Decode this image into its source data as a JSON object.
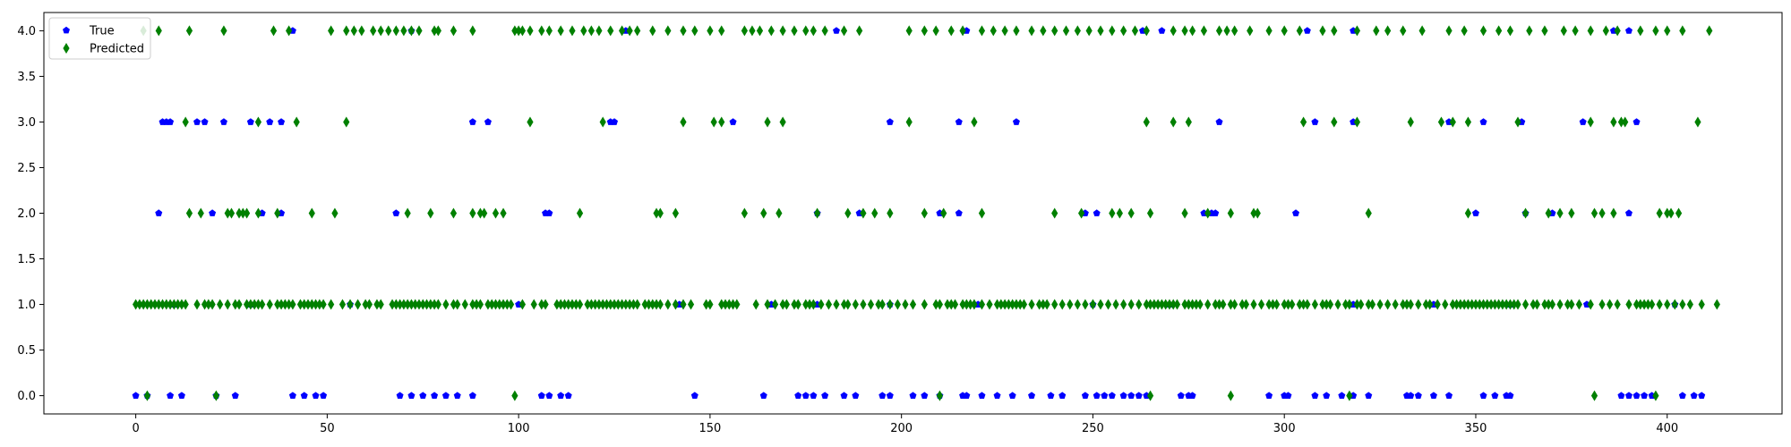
{
  "chart_data": {
    "type": "scatter",
    "xlim": [
      -24,
      430
    ],
    "ylim": [
      -0.2,
      4.2
    ],
    "x_ticks": [
      0,
      50,
      100,
      150,
      200,
      250,
      300,
      350,
      400
    ],
    "y_ticks": [
      0.0,
      0.5,
      1.0,
      1.5,
      2.0,
      2.5,
      3.0,
      3.5,
      4.0
    ],
    "legend": "top-left",
    "grid": false,
    "series": [
      {
        "name": "True",
        "marker": "pentagon",
        "color": "#0000ff",
        "points": {
          "0": [
            0,
            3,
            9,
            12,
            21,
            26,
            41,
            44,
            47,
            49,
            69,
            72,
            75,
            78,
            81,
            84,
            88,
            106,
            108,
            111,
            113,
            146,
            164,
            173,
            175,
            177,
            180,
            185,
            188,
            195,
            197,
            203,
            206,
            210,
            216,
            217,
            221,
            225,
            229,
            234,
            239,
            242,
            248,
            251,
            253,
            255,
            258,
            260,
            262,
            264,
            273,
            275,
            276,
            296,
            300,
            301,
            308,
            311,
            315,
            318,
            322,
            332,
            333,
            335,
            339,
            343,
            352,
            355,
            358,
            359,
            388,
            390,
            392,
            394,
            396,
            404,
            407,
            409
          ],
          "1": [
            10,
            30,
            56,
            100,
            142,
            166,
            178,
            197,
            220,
            250,
            270,
            318,
            339,
            359,
            379,
            402
          ],
          "2": [
            6,
            20,
            33,
            38,
            68,
            107,
            108,
            178,
            189,
            210,
            215,
            248,
            251,
            279,
            281,
            282,
            303,
            350,
            363,
            370,
            390
          ],
          "3": [
            7,
            8,
            9,
            16,
            18,
            23,
            30,
            35,
            38,
            88,
            92,
            124,
            125,
            156,
            197,
            215,
            230,
            283,
            308,
            318,
            343,
            352,
            362,
            378,
            392
          ],
          "4": [
            41,
            72,
            128,
            183,
            217,
            263,
            268,
            306,
            318,
            386,
            390
          ]
        }
      },
      {
        "name": "Predicted",
        "marker": "thin_diamond",
        "color": "#008000",
        "points": {
          "0": [
            3,
            21,
            99,
            210,
            265,
            286,
            317,
            381,
            397
          ],
          "1": [
            0,
            1,
            2,
            3,
            4,
            5,
            6,
            7,
            8,
            9,
            10,
            11,
            12,
            13,
            16,
            18,
            19,
            20,
            22,
            24,
            26,
            27,
            29,
            30,
            31,
            32,
            33,
            35,
            37,
            38,
            39,
            40,
            41,
            43,
            44,
            45,
            46,
            47,
            48,
            49,
            51,
            54,
            56,
            58,
            60,
            61,
            63,
            64,
            67,
            68,
            69,
            70,
            71,
            72,
            73,
            74,
            75,
            76,
            77,
            78,
            79,
            81,
            83,
            84,
            86,
            88,
            89,
            90,
            92,
            93,
            94,
            95,
            96,
            97,
            98,
            101,
            104,
            106,
            107,
            110,
            111,
            112,
            113,
            114,
            115,
            116,
            118,
            119,
            120,
            121,
            122,
            123,
            124,
            125,
            126,
            127,
            128,
            129,
            130,
            131,
            133,
            134,
            135,
            136,
            137,
            139,
            141,
            143,
            145,
            149,
            150,
            153,
            154,
            155,
            156,
            157,
            162,
            165,
            167,
            169,
            170,
            172,
            173,
            175,
            176,
            177,
            179,
            181,
            183,
            185,
            186,
            188,
            190,
            192,
            194,
            195,
            197,
            199,
            201,
            203,
            206,
            209,
            210,
            212,
            213,
            214,
            216,
            217,
            218,
            219,
            221,
            223,
            225,
            226,
            227,
            228,
            229,
            230,
            231,
            232,
            234,
            236,
            237,
            238,
            240,
            242,
            244,
            246,
            248,
            250,
            252,
            254,
            256,
            258,
            260,
            262,
            264,
            265,
            266,
            267,
            268,
            269,
            270,
            271,
            272,
            274,
            275,
            276,
            277,
            278,
            280,
            282,
            283,
            284,
            286,
            287,
            289,
            290,
            292,
            294,
            296,
            297,
            298,
            300,
            301,
            302,
            304,
            305,
            306,
            308,
            310,
            311,
            312,
            314,
            316,
            317,
            319,
            320,
            322,
            323,
            325,
            327,
            329,
            331,
            332,
            333,
            335,
            337,
            338,
            340,
            342,
            344,
            345,
            346,
            347,
            348,
            349,
            350,
            351,
            352,
            353,
            354,
            355,
            356,
            357,
            358,
            359,
            360,
            361,
            363,
            365,
            366,
            368,
            369,
            370,
            372,
            374,
            375,
            377,
            380,
            383,
            385,
            387,
            390,
            392,
            393,
            394,
            395,
            396,
            398,
            400,
            402,
            404,
            406,
            409,
            413
          ],
          "2": [
            14,
            17,
            24,
            25,
            27,
            28,
            29,
            32,
            37,
            46,
            52,
            71,
            77,
            83,
            88,
            90,
            91,
            94,
            96,
            116,
            136,
            137,
            141,
            159,
            164,
            168,
            178,
            186,
            190,
            193,
            197,
            206,
            211,
            221,
            240,
            247,
            255,
            257,
            260,
            265,
            274,
            280,
            286,
            292,
            293,
            322,
            348,
            363,
            369,
            372,
            375,
            381,
            383,
            386,
            398,
            400,
            401,
            403
          ],
          "3": [
            13,
            32,
            42,
            55,
            103,
            122,
            143,
            151,
            153,
            165,
            169,
            202,
            219,
            264,
            271,
            275,
            305,
            313,
            319,
            333,
            341,
            344,
            348,
            361,
            380,
            386,
            388,
            389,
            408
          ],
          "4": [
            2,
            6,
            14,
            23,
            36,
            40,
            51,
            55,
            57,
            59,
            62,
            64,
            66,
            68,
            70,
            72,
            74,
            78,
            79,
            83,
            88,
            99,
            100,
            101,
            103,
            106,
            108,
            111,
            114,
            117,
            119,
            121,
            124,
            127,
            129,
            131,
            135,
            139,
            143,
            146,
            150,
            153,
            159,
            161,
            163,
            166,
            169,
            172,
            175,
            177,
            180,
            185,
            189,
            202,
            206,
            209,
            213,
            216,
            221,
            224,
            227,
            230,
            234,
            237,
            240,
            243,
            246,
            249,
            252,
            255,
            258,
            261,
            264,
            271,
            274,
            276,
            279,
            283,
            285,
            287,
            291,
            296,
            300,
            304,
            310,
            313,
            319,
            324,
            327,
            331,
            336,
            343,
            347,
            352,
            356,
            359,
            364,
            368,
            373,
            376,
            380,
            384,
            387,
            393,
            397,
            400,
            404,
            411
          ]
        }
      }
    ]
  }
}
